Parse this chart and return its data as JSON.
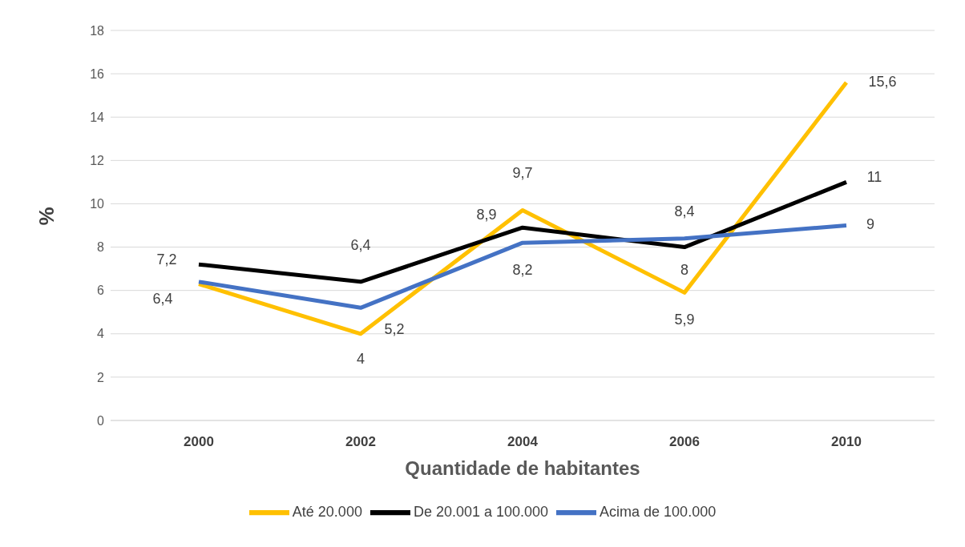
{
  "chart_data": {
    "type": "line",
    "xlabel": "Quantidade de habitantes",
    "ylabel": "%",
    "categories": [
      "2000",
      "2002",
      "2004",
      "2006",
      "2010"
    ],
    "series": [
      {
        "name": "Até 20.000",
        "color": "#ffc000",
        "values": [
          6.3,
          4,
          9.7,
          5.9,
          15.6
        ],
        "value_labels": [
          null,
          "4",
          "9,7",
          "5,9",
          "15,6"
        ]
      },
      {
        "name": "De 20.001 a 100.000",
        "color": "#000000",
        "values": [
          7.2,
          6.4,
          8.9,
          8,
          11
        ],
        "value_labels": [
          "7,2",
          "6,4",
          "8,9",
          "8",
          "11"
        ]
      },
      {
        "name": "Acima de 100.000",
        "color": "#4472c4",
        "values": [
          6.4,
          5.2,
          8.2,
          8.4,
          9
        ],
        "value_labels": [
          "6,4",
          "5,2",
          "8,2",
          "8,4",
          "9"
        ]
      }
    ],
    "ylim": [
      0,
      18
    ],
    "yticks": [
      0,
      2,
      4,
      6,
      8,
      10,
      12,
      14,
      16,
      18
    ],
    "grid": "y",
    "legend": "bottom",
    "marker": "none",
    "line_style": "solid"
  }
}
